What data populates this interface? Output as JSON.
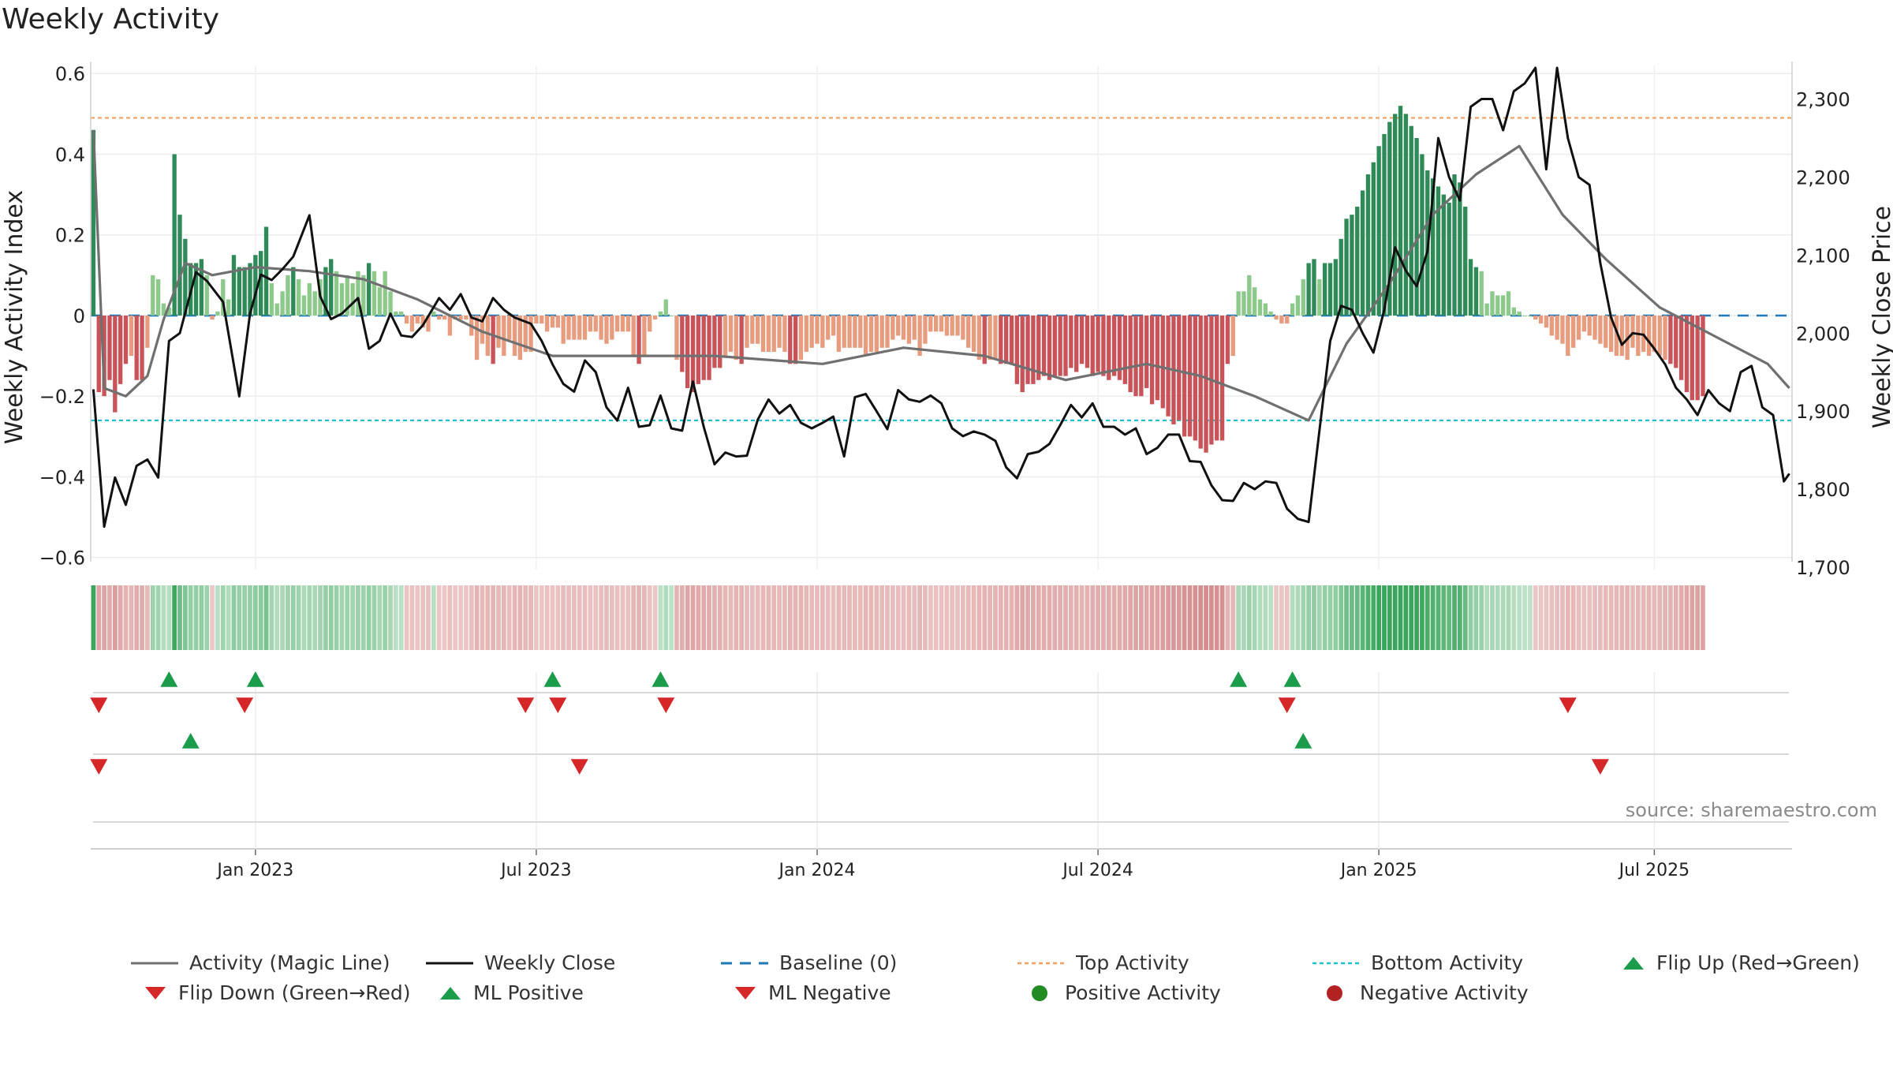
{
  "title": "Weekly Activity",
  "source": "source: sharemaestro.com",
  "chart_data": {
    "type": "bar",
    "left_axis": {
      "label": "Weekly Activity Index",
      "ylim": [
        -0.63,
        0.62
      ],
      "ticks": [
        0.6,
        0.4,
        0.2,
        0,
        -0.2,
        -0.4,
        -0.6
      ],
      "tick_labels": [
        "0.6",
        "0.4",
        "0.2",
        "0",
        "−0.2",
        "−0.4",
        "−0.6"
      ]
    },
    "right_axis": {
      "label": "Weekly Close Price",
      "ylim": [
        1697,
        2343
      ],
      "ticks": [
        2300,
        2200,
        2100,
        2000,
        1900,
        1800,
        1700
      ],
      "tick_labels": [
        "2,300",
        "2,200",
        "2,100",
        "2,000",
        "1,900",
        "1,800",
        "1,700"
      ]
    },
    "x_axis": {
      "ticks": [
        [
          "Jan 2023",
          30
        ],
        [
          "Jul 2023",
          82
        ],
        [
          "Jan 2024",
          134
        ],
        [
          "Jul 2024",
          186
        ],
        [
          "Jan 2025",
          238
        ],
        [
          "Jul 2025",
          289
        ]
      ]
    },
    "reference_lines": {
      "top_activity": 0.49,
      "bottom_activity": -0.26,
      "baseline": 0
    },
    "weeks": 315,
    "activity": [
      0.46,
      -0.19,
      -0.2,
      -0.16,
      -0.24,
      -0.17,
      -0.12,
      -0.1,
      -0.16,
      -0.16,
      -0.08,
      0.1,
      0.09,
      0.03,
      0.02,
      0.4,
      0.25,
      0.19,
      0.13,
      0.13,
      0.14,
      0.1,
      -0.01,
      0.01,
      0.09,
      0.04,
      0.15,
      0.12,
      0.12,
      0.13,
      0.15,
      0.16,
      0.22,
      0.08,
      0.03,
      0.06,
      0.1,
      0.12,
      0.09,
      0.05,
      0.08,
      0.06,
      0.09,
      0.12,
      0.14,
      0.11,
      0.08,
      0.1,
      0.08,
      0.11,
      0.1,
      0.13,
      0.11,
      0.07,
      0.11,
      0.06,
      0.01,
      0.01,
      -0.02,
      -0.04,
      -0.02,
      -0.03,
      -0.04,
      0.01,
      -0.01,
      -0.01,
      -0.05,
      -0.01,
      -0.01,
      -0.01,
      -0.05,
      -0.11,
      -0.07,
      -0.1,
      -0.12,
      -0.08,
      -0.1,
      -0.06,
      -0.1,
      -0.11,
      -0.09,
      -0.09,
      -0.02,
      -0.02,
      -0.04,
      -0.03,
      -0.03,
      -0.07,
      -0.06,
      -0.06,
      -0.06,
      -0.06,
      -0.04,
      -0.04,
      -0.06,
      -0.07,
      -0.06,
      -0.04,
      -0.04,
      -0.04,
      -0.1,
      -0.12,
      -0.1,
      -0.04,
      -0.01,
      0.01,
      0.04,
      0.0,
      -0.11,
      -0.14,
      -0.18,
      -0.19,
      -0.17,
      -0.16,
      -0.16,
      -0.13,
      -0.13,
      -0.1,
      -0.09,
      -0.11,
      -0.12,
      -0.08,
      -0.07,
      -0.07,
      -0.09,
      -0.09,
      -0.09,
      -0.08,
      -0.09,
      -0.12,
      -0.12,
      -0.11,
      -0.09,
      -0.08,
      -0.07,
      -0.08,
      -0.06,
      -0.05,
      -0.09,
      -0.08,
      -0.08,
      -0.08,
      -0.08,
      -0.1,
      -0.09,
      -0.09,
      -0.08,
      -0.08,
      -0.06,
      -0.05,
      -0.06,
      -0.07,
      -0.06,
      -0.1,
      -0.07,
      -0.04,
      -0.04,
      -0.04,
      -0.05,
      -0.05,
      -0.05,
      -0.06,
      -0.08,
      -0.09,
      -0.11,
      -0.12,
      -0.11,
      -0.11,
      -0.12,
      -0.12,
      -0.12,
      -0.17,
      -0.19,
      -0.17,
      -0.17,
      -0.16,
      -0.15,
      -0.16,
      -0.15,
      -0.15,
      -0.15,
      -0.13,
      -0.14,
      -0.12,
      -0.13,
      -0.15,
      -0.14,
      -0.15,
      -0.16,
      -0.15,
      -0.16,
      -0.17,
      -0.19,
      -0.2,
      -0.2,
      -0.18,
      -0.22,
      -0.21,
      -0.23,
      -0.25,
      -0.27,
      -0.26,
      -0.3,
      -0.3,
      -0.31,
      -0.33,
      -0.34,
      -0.32,
      -0.31,
      -0.31,
      -0.12,
      -0.1,
      0.06,
      0.06,
      0.1,
      0.07,
      0.04,
      0.03,
      0.01,
      -0.01,
      -0.02,
      -0.02,
      0.03,
      0.05,
      0.09,
      0.13,
      0.14,
      0.09,
      0.13,
      0.13,
      0.14,
      0.19,
      0.24,
      0.25,
      0.27,
      0.31,
      0.35,
      0.38,
      0.42,
      0.45,
      0.48,
      0.5,
      0.52,
      0.5,
      0.47,
      0.44,
      0.4,
      0.36,
      0.34,
      0.32,
      0.3,
      0.28,
      0.35,
      0.33,
      0.27,
      0.14,
      0.12,
      0.11,
      0.03,
      0.06,
      0.05,
      0.05,
      0.06,
      0.02,
      0.01,
      0.0,
      0.0,
      -0.01,
      -0.02,
      -0.03,
      -0.05,
      -0.06,
      -0.07,
      -0.1,
      -0.08,
      -0.06,
      -0.04,
      -0.05,
      -0.06,
      -0.07,
      -0.08,
      -0.09,
      -0.1,
      -0.1,
      -0.11,
      -0.08,
      -0.1,
      -0.09,
      -0.1,
      -0.09,
      -0.1,
      -0.11,
      -0.12,
      -0.13,
      -0.16,
      -0.19,
      -0.21,
      -0.21,
      -0.2
    ],
    "magic_line": [
      [
        0,
        0.46
      ],
      [
        2,
        -0.18
      ],
      [
        6,
        -0.2
      ],
      [
        10,
        -0.15
      ],
      [
        13,
        -0.01
      ],
      [
        17,
        0.13
      ],
      [
        22,
        0.1
      ],
      [
        30,
        0.12
      ],
      [
        40,
        0.11
      ],
      [
        50,
        0.09
      ],
      [
        60,
        0.04
      ],
      [
        72,
        -0.04
      ],
      [
        85,
        -0.1
      ],
      [
        100,
        -0.1
      ],
      [
        115,
        -0.1
      ],
      [
        135,
        -0.12
      ],
      [
        150,
        -0.08
      ],
      [
        165,
        -0.1
      ],
      [
        180,
        -0.16
      ],
      [
        195,
        -0.12
      ],
      [
        205,
        -0.15
      ],
      [
        215,
        -0.2
      ],
      [
        225,
        -0.26
      ],
      [
        232,
        -0.07
      ],
      [
        240,
        0.08
      ],
      [
        248,
        0.25
      ],
      [
        256,
        0.35
      ],
      [
        264,
        0.42
      ],
      [
        272,
        0.25
      ],
      [
        280,
        0.14
      ],
      [
        290,
        0.02
      ],
      [
        300,
        -0.05
      ],
      [
        310,
        -0.12
      ],
      [
        314,
        -0.18
      ]
    ],
    "weekly_close": [
      [
        0,
        1928
      ],
      [
        2,
        1752
      ],
      [
        4,
        1815
      ],
      [
        6,
        1780
      ],
      [
        8,
        1830
      ],
      [
        10,
        1838
      ],
      [
        12,
        1815
      ],
      [
        14,
        1990
      ],
      [
        16,
        2000
      ],
      [
        19,
        2078
      ],
      [
        21,
        2067
      ],
      [
        24,
        2040
      ],
      [
        27,
        1919
      ],
      [
        29,
        2025
      ],
      [
        31,
        2075
      ],
      [
        33,
        2068
      ],
      [
        35,
        2082
      ],
      [
        37,
        2098
      ],
      [
        40,
        2151
      ],
      [
        42,
        2047
      ],
      [
        44,
        2018
      ],
      [
        46,
        2025
      ],
      [
        49,
        2045
      ],
      [
        51,
        1980
      ],
      [
        53,
        1990
      ],
      [
        55,
        2025
      ],
      [
        57,
        1997
      ],
      [
        59,
        1995
      ],
      [
        61,
        2010
      ],
      [
        64,
        2045
      ],
      [
        66,
        2030
      ],
      [
        68,
        2050
      ],
      [
        70,
        2020
      ],
      [
        72,
        2015
      ],
      [
        74,
        2045
      ],
      [
        76,
        2030
      ],
      [
        78,
        2020
      ],
      [
        81,
        2012
      ],
      [
        83,
        1990
      ],
      [
        85,
        1960
      ],
      [
        87,
        1935
      ],
      [
        89,
        1925
      ],
      [
        91,
        1965
      ],
      [
        93,
        1950
      ],
      [
        95,
        1905
      ],
      [
        97,
        1888
      ],
      [
        99,
        1930
      ],
      [
        101,
        1880
      ],
      [
        103,
        1882
      ],
      [
        105,
        1920
      ],
      [
        107,
        1878
      ],
      [
        109,
        1875
      ],
      [
        111,
        1938
      ],
      [
        113,
        1880
      ],
      [
        115,
        1832
      ],
      [
        117,
        1847
      ],
      [
        119,
        1842
      ],
      [
        121,
        1843
      ],
      [
        123,
        1889
      ],
      [
        125,
        1915
      ],
      [
        127,
        1897
      ],
      [
        129,
        1908
      ],
      [
        131,
        1885
      ],
      [
        133,
        1878
      ],
      [
        135,
        1885
      ],
      [
        137,
        1893
      ],
      [
        139,
        1842
      ],
      [
        141,
        1918
      ],
      [
        143,
        1922
      ],
      [
        145,
        1900
      ],
      [
        147,
        1877
      ],
      [
        149,
        1927
      ],
      [
        151,
        1915
      ],
      [
        153,
        1912
      ],
      [
        155,
        1920
      ],
      [
        157,
        1910
      ],
      [
        159,
        1878
      ],
      [
        161,
        1868
      ],
      [
        163,
        1874
      ],
      [
        165,
        1870
      ],
      [
        167,
        1862
      ],
      [
        169,
        1828
      ],
      [
        171,
        1814
      ],
      [
        173,
        1845
      ],
      [
        175,
        1848
      ],
      [
        177,
        1858
      ],
      [
        179,
        1882
      ],
      [
        181,
        1908
      ],
      [
        183,
        1892
      ],
      [
        185,
        1910
      ],
      [
        187,
        1880
      ],
      [
        189,
        1880
      ],
      [
        191,
        1870
      ],
      [
        193,
        1878
      ],
      [
        195,
        1845
      ],
      [
        197,
        1853
      ],
      [
        199,
        1870
      ],
      [
        201,
        1870
      ],
      [
        203,
        1836
      ],
      [
        205,
        1835
      ],
      [
        207,
        1805
      ],
      [
        209,
        1786
      ],
      [
        211,
        1785
      ],
      [
        213,
        1808
      ],
      [
        215,
        1800
      ],
      [
        217,
        1810
      ],
      [
        219,
        1808
      ],
      [
        221,
        1775
      ],
      [
        223,
        1762
      ],
      [
        225,
        1758
      ],
      [
        227,
        1875
      ],
      [
        229,
        1990
      ],
      [
        231,
        2035
      ],
      [
        233,
        2030
      ],
      [
        235,
        2000
      ],
      [
        237,
        1975
      ],
      [
        239,
        2030
      ],
      [
        241,
        2110
      ],
      [
        243,
        2080
      ],
      [
        245,
        2060
      ],
      [
        247,
        2105
      ],
      [
        249,
        2250
      ],
      [
        251,
        2200
      ],
      [
        253,
        2170
      ],
      [
        255,
        2290
      ],
      [
        257,
        2300
      ],
      [
        259,
        2300
      ],
      [
        261,
        2260
      ],
      [
        263,
        2310
      ],
      [
        265,
        2320
      ],
      [
        267,
        2340
      ],
      [
        269,
        2210
      ],
      [
        271,
        2340
      ],
      [
        273,
        2250
      ],
      [
        275,
        2200
      ],
      [
        277,
        2190
      ],
      [
        279,
        2090
      ],
      [
        281,
        2020
      ],
      [
        283,
        1985
      ],
      [
        285,
        2000
      ],
      [
        287,
        1998
      ],
      [
        289,
        1980
      ],
      [
        291,
        1960
      ],
      [
        293,
        1930
      ],
      [
        295,
        1915
      ],
      [
        297,
        1895
      ],
      [
        299,
        1927
      ],
      [
        301,
        1910
      ],
      [
        303,
        1900
      ],
      [
        305,
        1950
      ],
      [
        307,
        1958
      ],
      [
        309,
        1905
      ],
      [
        311,
        1895
      ],
      [
        313,
        1810
      ],
      [
        314,
        1820
      ]
    ],
    "flip_up_markers": [
      14,
      30,
      85,
      105,
      212,
      222
    ],
    "flip_down_markers": [
      1,
      28,
      80,
      86,
      106,
      221,
      273
    ],
    "ml_positive_markers": [
      18,
      224
    ],
    "ml_negative_markers": [
      1,
      90,
      279
    ],
    "legend": [
      "Activity (Magic Line)",
      "Weekly Close",
      "Baseline (0)",
      "Top Activity",
      "Bottom Activity",
      "Flip Up (Red→Green)",
      "Flip Down (Green→Red)",
      "ML Positive",
      "ML Negative",
      "Positive Activity",
      "Negative Activity"
    ],
    "colors": {
      "pos_dark": "#2e8b57",
      "pos_light": "#8cc98b",
      "neg_dark": "#c8545a",
      "neg_light": "#e89c7f",
      "magic_line": "#707070",
      "close": "#111111",
      "baseline": "#1f77b4",
      "top": "#f0a060",
      "bottom": "#22bfcf",
      "flip_up": "#1a9c4a",
      "flip_down": "#d62728",
      "positive_dot": "#228b22",
      "negative_dot": "#b22222"
    }
  }
}
